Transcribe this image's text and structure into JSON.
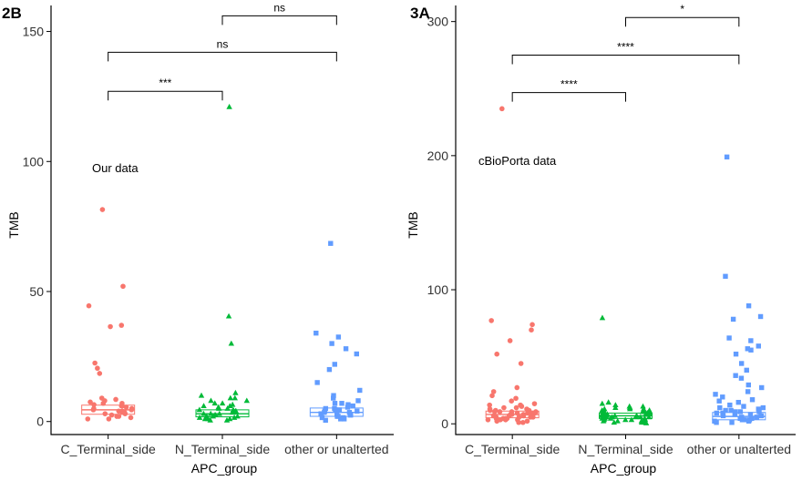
{
  "colors": {
    "C_Terminal_side": "#F8766D",
    "N_Terminal_side": "#00BA38",
    "other or unalterted": "#619CFF",
    "axis": "#000000"
  },
  "chart_data": [
    {
      "panel": "2B",
      "type": "scatter",
      "annotation": "Our data",
      "xlabel": "APC_group",
      "ylabel": "TMB",
      "categories": [
        "C_Terminal_side",
        "N_Terminal_side",
        "other or unalterted"
      ],
      "markers": [
        "circle",
        "triangle",
        "square"
      ],
      "ylim": [
        -5,
        160
      ],
      "yticks": [
        0,
        50,
        100,
        150
      ],
      "grid": false,
      "legend": "none",
      "boxes": [
        {
          "q1": 2.8,
          "median": 4.5,
          "q3": 6.3
        },
        {
          "q1": 1.8,
          "median": 3.0,
          "q3": 4.5
        },
        {
          "q1": 2.0,
          "median": 3.5,
          "q3": 5.2
        }
      ],
      "series": [
        {
          "values": [
            81.5,
            52,
            44.5,
            37,
            36.5,
            22.5,
            20.5,
            18.5,
            9,
            8.5,
            8,
            7.5,
            7,
            7,
            6.5,
            6,
            6,
            5.5,
            5,
            5,
            4.5,
            4.5,
            4,
            4,
            3.5,
            3.5,
            3,
            3,
            2.5,
            2,
            2,
            1.5,
            1,
            1
          ]
        },
        {
          "values": [
            121,
            40.5,
            30,
            11,
            10,
            9,
            9,
            8,
            8,
            7,
            7,
            6.5,
            6,
            6,
            5.5,
            5,
            5,
            4.5,
            4.5,
            4,
            4,
            3.5,
            3.5,
            3,
            3,
            3,
            2.5,
            2.5,
            2,
            2,
            2,
            1.5,
            1.5,
            1,
            1,
            1,
            0.5,
            0.5
          ]
        },
        {
          "values": [
            68.5,
            34,
            32.5,
            30,
            28,
            26,
            22,
            20,
            15,
            12,
            10,
            9,
            8,
            7,
            7,
            6.5,
            6,
            5.5,
            5,
            5,
            4.5,
            4.5,
            4,
            4,
            3.5,
            3.5,
            3,
            3,
            2.5,
            2.5,
            2,
            2,
            1.5,
            1.5,
            1,
            1,
            0.5
          ]
        }
      ],
      "comparisons": [
        {
          "from": 0,
          "to": 1,
          "label": "***",
          "y": 127
        },
        {
          "from": 0,
          "to": 2,
          "label": "ns",
          "y": 142
        },
        {
          "from": 1,
          "to": 2,
          "label": "ns",
          "y": 156
        }
      ]
    },
    {
      "panel": "3A",
      "type": "scatter",
      "annotation": "cBioPorta data",
      "xlabel": "APC_group",
      "ylabel": "TMB",
      "categories": [
        "C_Terminal_side",
        "N_Terminal_side",
        "other or unalterted"
      ],
      "markers": [
        "circle",
        "triangle",
        "square"
      ],
      "ylim": [
        -8,
        312
      ],
      "yticks": [
        0,
        100,
        200,
        300
      ],
      "grid": false,
      "legend": "none",
      "boxes": [
        {
          "q1": 4.5,
          "median": 7,
          "q3": 9.5
        },
        {
          "q1": 4,
          "median": 6,
          "q3": 8
        },
        {
          "q1": 3,
          "median": 5.5,
          "q3": 8.5
        }
      ],
      "series": [
        {
          "values": [
            235,
            77,
            74,
            70,
            62,
            52,
            45,
            27,
            24,
            21,
            19,
            17,
            15,
            14,
            13,
            12,
            11,
            11,
            10,
            10,
            9,
            9,
            9,
            8,
            8,
            8,
            7,
            7,
            7,
            6,
            6,
            6,
            5,
            5,
            5,
            4,
            4,
            4,
            3,
            3,
            3,
            2,
            2,
            1,
            1,
            12,
            10,
            8,
            6,
            4,
            14,
            9,
            7,
            5,
            3
          ]
        },
        {
          "values": [
            79,
            16,
            15,
            14,
            13,
            13,
            12,
            12,
            11,
            11,
            10,
            10,
            10,
            9,
            9,
            9,
            8,
            8,
            8,
            7,
            7,
            7,
            7,
            6,
            6,
            6,
            6,
            5,
            5,
            5,
            5,
            4,
            4,
            4,
            4,
            3,
            3,
            3,
            2,
            2,
            2,
            1,
            1,
            1,
            0.5,
            11,
            9,
            7,
            5,
            3
          ]
        },
        {
          "values": [
            199,
            110,
            88,
            80,
            78,
            64,
            62,
            58,
            56,
            55,
            52,
            45,
            40,
            36,
            34,
            29,
            27,
            24,
            22,
            20,
            18,
            17,
            16,
            14,
            13,
            12,
            11,
            10,
            10,
            9,
            9,
            8,
            8,
            7,
            7,
            6,
            6,
            5,
            5,
            4,
            4,
            3,
            3,
            2,
            2,
            1,
            1,
            12,
            9,
            6,
            3
          ]
        }
      ],
      "comparisons": [
        {
          "from": 0,
          "to": 1,
          "label": "****",
          "y": 247
        },
        {
          "from": 0,
          "to": 2,
          "label": "****",
          "y": 275
        },
        {
          "from": 1,
          "to": 2,
          "label": "*",
          "y": 303
        }
      ]
    }
  ]
}
